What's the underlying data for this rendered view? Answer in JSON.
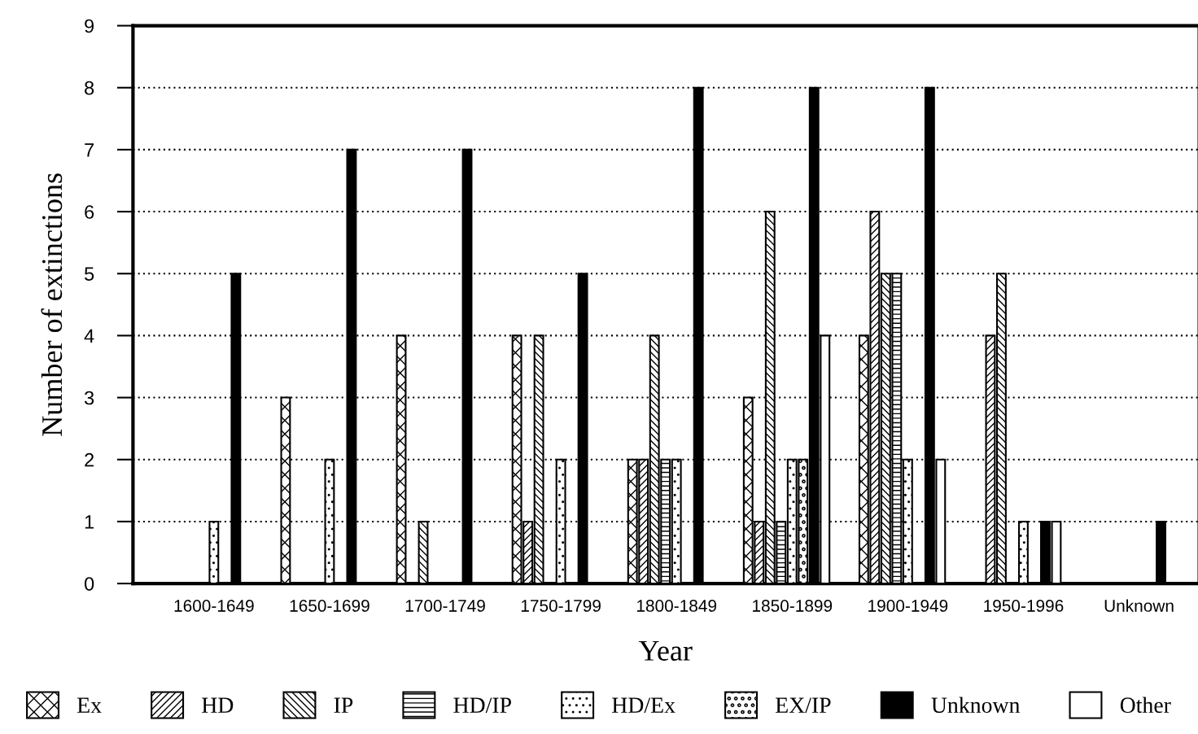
{
  "chart_data": {
    "type": "bar",
    "xlabel": "Year",
    "ylabel": "Number of extinctions",
    "categories": [
      "1600-1649",
      "1650-1699",
      "1700-1749",
      "1750-1799",
      "1800-1849",
      "1850-1899",
      "1900-1949",
      "1950-1996",
      "Unknown"
    ],
    "series": [
      {
        "name": "Ex",
        "color": "#000000",
        "values": [
          0,
          3,
          4,
          4,
          2,
          3,
          4,
          0,
          0
        ]
      },
      {
        "name": "HD",
        "color": "#000000",
        "values": [
          0,
          0,
          0,
          1,
          2,
          1,
          6,
          4,
          0
        ]
      },
      {
        "name": "IP",
        "color": "#000000",
        "values": [
          0,
          0,
          1,
          4,
          4,
          6,
          5,
          5,
          0
        ]
      },
      {
        "name": "HD/IP",
        "color": "#000000",
        "values": [
          0,
          0,
          0,
          0,
          2,
          1,
          5,
          0,
          0
        ]
      },
      {
        "name": "HD/Ex",
        "color": "#000000",
        "values": [
          1,
          2,
          0,
          2,
          2,
          2,
          2,
          1,
          0
        ]
      },
      {
        "name": "EX/IP",
        "color": "#000000",
        "values": [
          0,
          0,
          0,
          0,
          0,
          2,
          0,
          0,
          0
        ]
      },
      {
        "name": "Unknown",
        "color": "#000000",
        "values": [
          5,
          7,
          7,
          5,
          8,
          8,
          8,
          1,
          1
        ]
      },
      {
        "name": "Other",
        "color": "#000000",
        "values": [
          0,
          0,
          0,
          0,
          0,
          4,
          2,
          1,
          0
        ]
      }
    ],
    "ylim": [
      0,
      9
    ],
    "yticks": [
      0,
      1,
      2,
      3,
      4,
      5,
      6,
      7,
      8,
      9
    ],
    "grid": "y",
    "legend": "bottom"
  }
}
